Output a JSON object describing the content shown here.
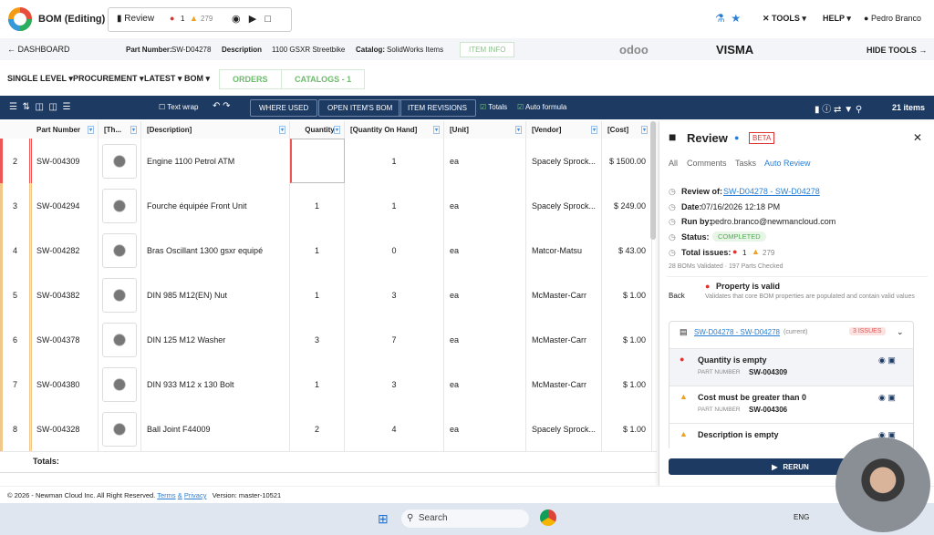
{
  "header": {
    "app_title": "BOM (Editing)",
    "review_button": "Review",
    "error_count": 1,
    "warning_count": 279,
    "tools": "TOOLS",
    "help": "HELP",
    "user": "Pedro Branco"
  },
  "breadcrumb": {
    "dashboard": "DASHBOARD",
    "part_number_label": "Part Number:",
    "part_number": "SW-D04278",
    "description_label": "Description",
    "description": "1100 GSXR Streetbike",
    "catalog_label": "Catalog:",
    "catalog": "SolidWorks Items",
    "item_info": "ITEM INFO",
    "brands": [
      "odoo",
      "VISMA"
    ],
    "hide_tools": "HIDE TOOLS"
  },
  "menu": {
    "items": [
      "SINGLE LEVEL",
      "PROCUREMENT",
      "LATEST",
      "BOM"
    ],
    "tabs": [
      "ORDERS",
      "CATALOGS - 1"
    ]
  },
  "toolbar": {
    "text_wrap": "Text wrap",
    "buttons": [
      "WHERE USED",
      "OPEN ITEM'S BOM",
      "ITEM REVISIONS"
    ],
    "totals": "Totals",
    "auto_formula": "Auto formula",
    "item_count": "21 items"
  },
  "table": {
    "columns": [
      "Part Number",
      "[Th...",
      "[Description]",
      "Quantity",
      "[Quantity On Hand]",
      "[Unit]",
      "[Vendor]",
      "[Cost]"
    ],
    "rows": [
      [
        2,
        "SW-004309",
        "Engine 1100 Petrol ATM",
        null,
        1,
        "ea",
        "Spacely Sprock...",
        "$ 1500.00"
      ],
      [
        3,
        "SW-004294",
        "Fourche équipée Front Unit",
        1,
        1,
        "ea",
        "Spacely Sprock...",
        "$ 249.00"
      ],
      [
        4,
        "SW-004282",
        "Bras Oscillant 1300 gsxr equipé",
        1,
        0,
        "ea",
        "Matcor-Matsu",
        "$ 43.00"
      ],
      [
        5,
        "SW-004382",
        "DIN 985 M12(EN) Nut",
        1,
        3,
        "ea",
        "McMaster-Carr",
        "$ 1.00"
      ],
      [
        6,
        "SW-004378",
        "DIN 125 M12 Washer",
        3,
        7,
        "ea",
        "McMaster-Carr",
        "$ 1.00"
      ],
      [
        7,
        "SW-004380",
        "DIN 933 M12 x 130 Bolt",
        1,
        3,
        "ea",
        "McMaster-Carr",
        "$ 1.00"
      ],
      [
        8,
        "SW-004328",
        "Ball Joint F44009",
        2,
        4,
        "ea",
        "Spacely Sprock...",
        "$ 1.00"
      ]
    ],
    "totals_label": "Totals:"
  },
  "review": {
    "title": "Review",
    "beta": "BETA",
    "tabs": [
      "All",
      "Comments",
      "Tasks",
      "Auto Review"
    ],
    "review_of_label": "Review of:",
    "review_of": "SW-D04278 - SW-D04278",
    "date_label": "Date:",
    "date": "07/16/2026 12:18 PM",
    "run_by_label": "Run by:",
    "run_by": "pedro.branco@newmancloud.com",
    "status_label": "Status:",
    "status": "COMPLETED",
    "total_issues_label": "Total issues:",
    "errors": 1,
    "warnings": 279,
    "summary": "28 BOMs Validated · 197 Parts Checked",
    "back": "Back",
    "rule_title": "Property is valid",
    "rule_description": "Validates that core BOM properties are populated and contain valid values",
    "group": {
      "link": "SW-D04278 - SW-D04278",
      "current": "(current)",
      "badge": "3 ISSUES"
    },
    "issues": [
      {
        "level": "error",
        "title": "Quantity is empty",
        "part_label": "PART NUMBER",
        "part": "SW-004309"
      },
      {
        "level": "warning",
        "title": "Cost must be greater than 0",
        "part_label": "PART NUMBER",
        "part": "SW-004306"
      },
      {
        "level": "warning",
        "title": "Description is empty"
      }
    ],
    "rerun": "RERUN"
  },
  "footer": {
    "copyright": "© 2026 - Newman Cloud Inc. All Right Reserved.",
    "terms": "Terms",
    "amp": "&",
    "privacy": "Privacy",
    "version": "Version: master-10521"
  },
  "taskbar": {
    "search": "Search",
    "language": "ENG"
  }
}
